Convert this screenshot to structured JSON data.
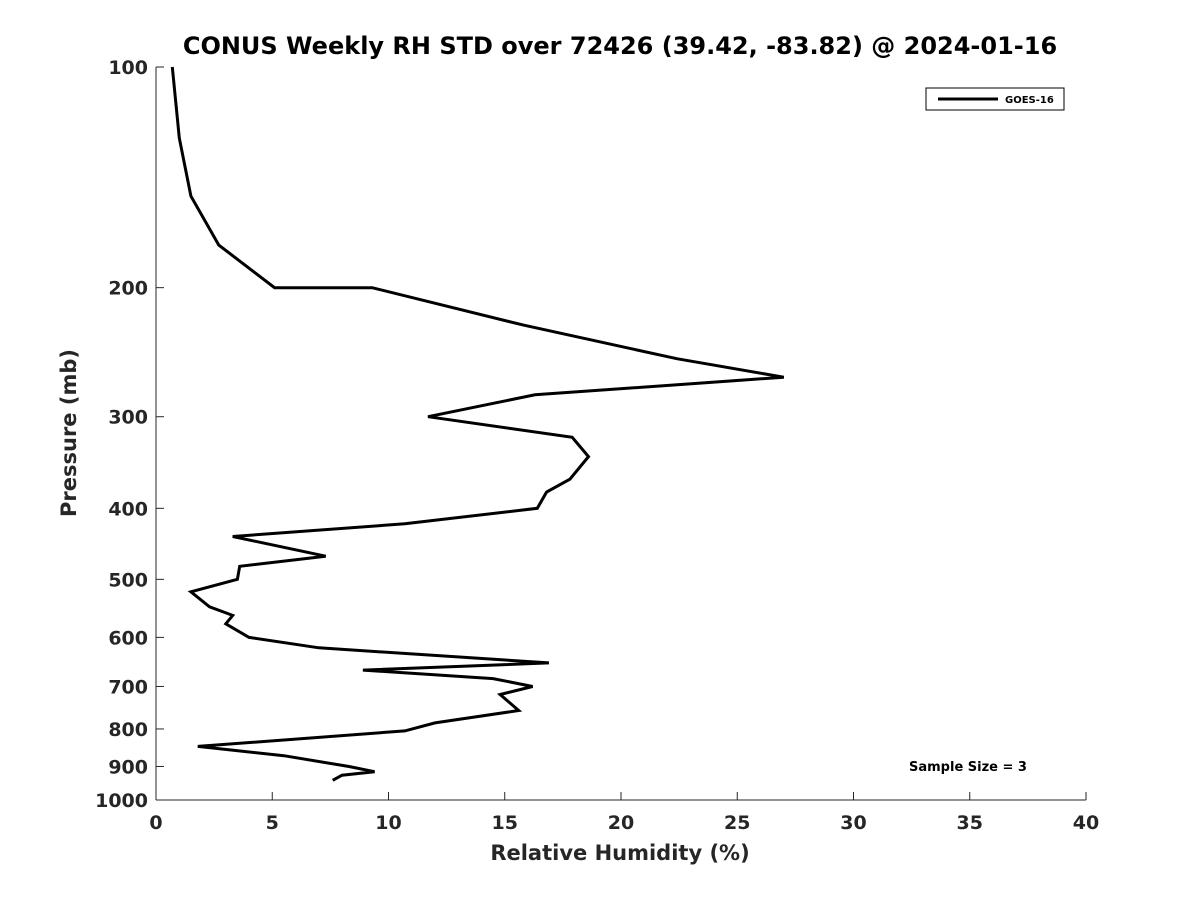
{
  "chart_data": {
    "type": "line",
    "title": "CONUS Weekly RH STD over 72426 (39.42, -83.82) @ 2024-01-16",
    "xlabel": "Relative Humidity (%)",
    "ylabel": "Pressure (mb)",
    "xlim": [
      0,
      40
    ],
    "ylim": [
      100,
      1000
    ],
    "y_scale": "log",
    "y_reversed": true,
    "x_ticks": [
      0,
      5,
      10,
      15,
      20,
      25,
      30,
      35,
      40
    ],
    "y_ticks": [
      100,
      200,
      300,
      400,
      500,
      600,
      700,
      800,
      900,
      1000
    ],
    "grid": false,
    "legend_position": "top-right",
    "annotation": "Sample Size = 3",
    "series": [
      {
        "name": "GOES-16",
        "color": "#000000",
        "points": [
          [
            0.7,
            100
          ],
          [
            1.0,
            125
          ],
          [
            1.5,
            150
          ],
          [
            2.7,
            175
          ],
          [
            5.1,
            200
          ],
          [
            9.3,
            200
          ],
          [
            15.8,
            225
          ],
          [
            22.4,
            250
          ],
          [
            27.0,
            265
          ],
          [
            16.3,
            280
          ],
          [
            11.7,
            300
          ],
          [
            17.9,
            320
          ],
          [
            18.6,
            340
          ],
          [
            17.8,
            365
          ],
          [
            16.8,
            380
          ],
          [
            16.4,
            400
          ],
          [
            10.7,
            420
          ],
          [
            3.3,
            437
          ],
          [
            7.3,
            465
          ],
          [
            3.6,
            480
          ],
          [
            3.5,
            500
          ],
          [
            1.5,
            520
          ],
          [
            2.3,
            545
          ],
          [
            3.3,
            560
          ],
          [
            3.0,
            575
          ],
          [
            4.0,
            600
          ],
          [
            7.0,
            620
          ],
          [
            16.9,
            650
          ],
          [
            8.9,
            665
          ],
          [
            14.5,
            683
          ],
          [
            16.2,
            700
          ],
          [
            14.8,
            718
          ],
          [
            15.6,
            755
          ],
          [
            12.0,
            785
          ],
          [
            10.7,
            805
          ],
          [
            1.8,
            845
          ],
          [
            5.5,
            870
          ],
          [
            8.3,
            900
          ],
          [
            9.4,
            915
          ],
          [
            8.0,
            925
          ],
          [
            7.6,
            940
          ]
        ]
      }
    ]
  }
}
